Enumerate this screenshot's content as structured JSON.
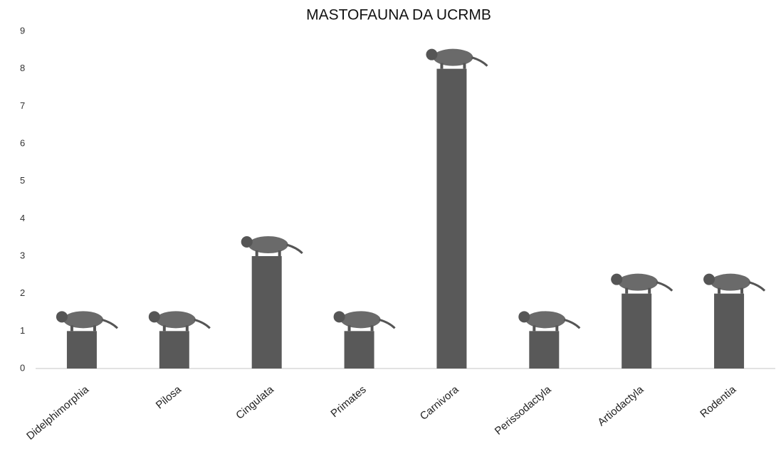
{
  "chart_data": {
    "type": "bar",
    "title": "MASTOFAUNA DA UCRMB",
    "categories": [
      "Didelphimorphia",
      "Pilosa",
      "Cingulata",
      "Primates",
      "Carnivora",
      "Perissodactyla",
      "Artiodactyla",
      "Rodentia"
    ],
    "values": [
      1,
      1,
      3,
      1,
      8,
      1,
      2,
      2
    ],
    "color": "#595959",
    "ylim": [
      0,
      9
    ],
    "yticks": [
      0,
      1,
      2,
      3,
      4,
      5,
      6,
      7,
      8,
      9
    ],
    "grid": false
  }
}
